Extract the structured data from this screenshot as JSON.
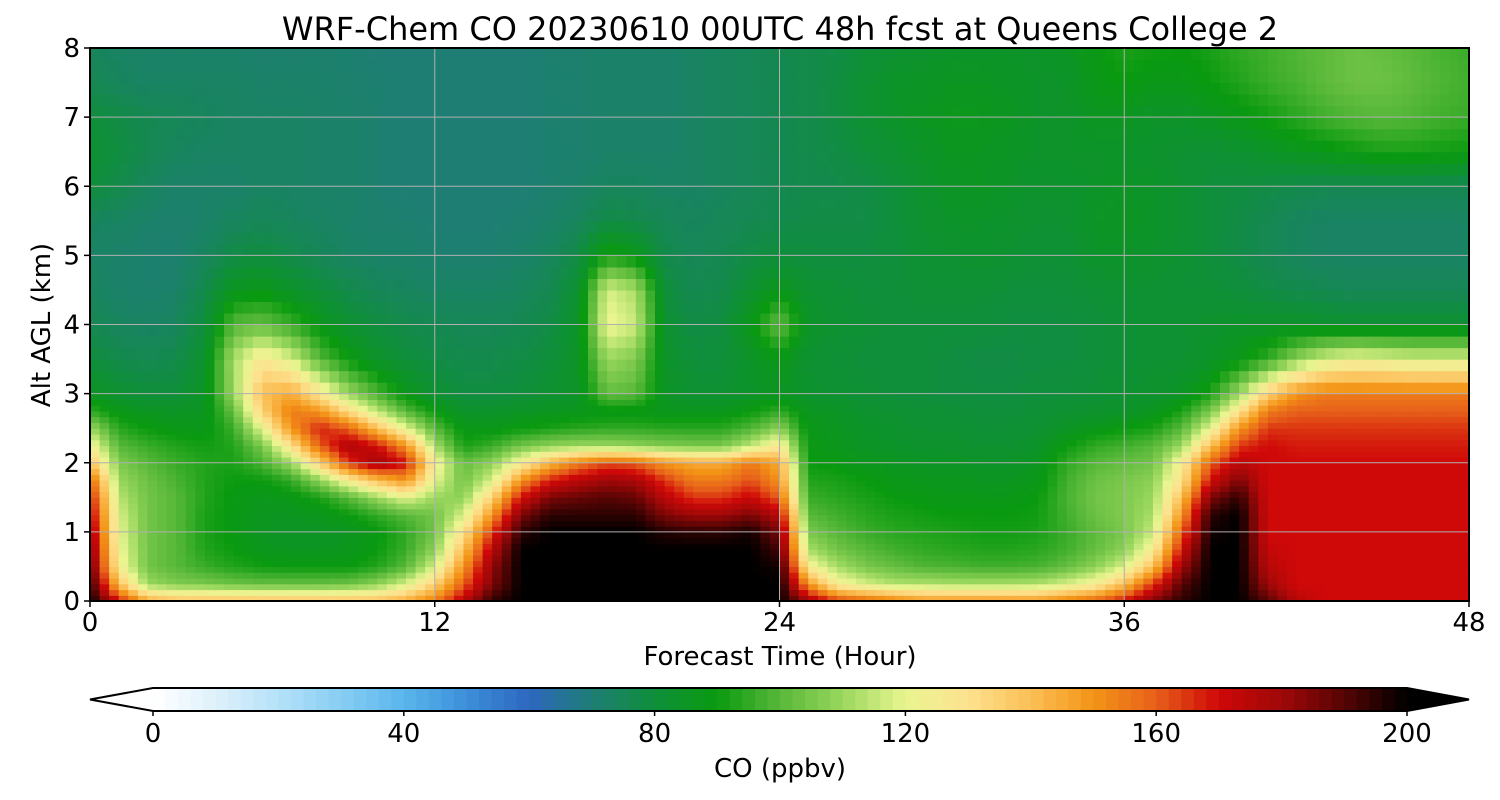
{
  "chart_data": {
    "type": "heatmap",
    "title": "WRF-Chem CO  20230610 00UTC 48h fcst at Queens College 2",
    "xlabel": "Forecast Time (Hour)",
    "ylabel": "Alt AGL (km)",
    "xlim": [
      0,
      48
    ],
    "ylim": [
      0,
      8
    ],
    "xticks": [
      0,
      12,
      24,
      36,
      48
    ],
    "yticks": [
      0,
      1,
      2,
      3,
      4,
      5,
      6,
      7,
      8
    ],
    "grid": true,
    "colorbar": {
      "label": "CO  (ppbv)",
      "range": [
        0,
        200
      ],
      "ticks": [
        0,
        40,
        80,
        120,
        160,
        200
      ],
      "extend": "both",
      "colors": [
        "#ffffff",
        "#dff1fb",
        "#b5e1f8",
        "#87cdf3",
        "#5ab6ec",
        "#3c8fd9",
        "#2e67bf",
        "#1e7e74",
        "#0f8f3a",
        "#0a9a10",
        "#58b839",
        "#9ad75e",
        "#e9f590",
        "#fde28f",
        "#fbbf55",
        "#f39417",
        "#e7601a",
        "#cf0808",
        "#9f0808",
        "#560404",
        "#000000"
      ]
    },
    "x": [
      0,
      1,
      2,
      3,
      4,
      5,
      6,
      7,
      8,
      9,
      10,
      11,
      12,
      13,
      14,
      15,
      16,
      17,
      18,
      19,
      20,
      21,
      22,
      23,
      24,
      25,
      26,
      27,
      28,
      29,
      30,
      31,
      32,
      33,
      34,
      35,
      36,
      37,
      38,
      39,
      40,
      41,
      42,
      43,
      44,
      45,
      46,
      47,
      48
    ],
    "y": [
      0,
      0.25,
      0.5,
      0.75,
      1,
      1.25,
      1.5,
      1.75,
      2,
      2.25,
      2.5,
      2.75,
      3,
      3.5,
      4,
      4.5,
      5,
      5.5,
      6,
      6.5,
      7,
      7.5,
      8
    ],
    "z_rows_by_altitude": [
      [
        200,
        170,
        145,
        140,
        140,
        140,
        140,
        140,
        140,
        140,
        140,
        145,
        155,
        175,
        195,
        200,
        200,
        200,
        200,
        200,
        200,
        200,
        200,
        200,
        200,
        180,
        165,
        160,
        155,
        150,
        150,
        150,
        150,
        150,
        155,
        160,
        170,
        185,
        195,
        200,
        200,
        190,
        175,
        170,
        170,
        170,
        170,
        170,
        170
      ],
      [
        195,
        140,
        110,
        106,
        105,
        103,
        102,
        102,
        102,
        103,
        108,
        118,
        135,
        160,
        185,
        200,
        200,
        200,
        200,
        200,
        200,
        200,
        200,
        200,
        200,
        150,
        125,
        118,
        113,
        113,
        112,
        112,
        112,
        113,
        118,
        125,
        140,
        165,
        190,
        200,
        200,
        180,
        170,
        170,
        170,
        170,
        170,
        170,
        170
      ],
      [
        190,
        125,
        104,
        100,
        96,
        93,
        91,
        90,
        90,
        90,
        93,
        100,
        118,
        150,
        182,
        200,
        200,
        200,
        200,
        200,
        200,
        200,
        200,
        200,
        198,
        125,
        112,
        105,
        102,
        99,
        98,
        97,
        97,
        98,
        102,
        108,
        118,
        140,
        180,
        200,
        200,
        175,
        170,
        170,
        170,
        170,
        170,
        170,
        170
      ],
      [
        185,
        122,
        104,
        100,
        93,
        90,
        87,
        86,
        86,
        87,
        90,
        96,
        108,
        140,
        175,
        200,
        200,
        200,
        200,
        200,
        200,
        200,
        200,
        200,
        192,
        112,
        104,
        100,
        97,
        95,
        94,
        93,
        93,
        94,
        97,
        102,
        108,
        125,
        170,
        200,
        200,
        172,
        170,
        170,
        170,
        170,
        170,
        170,
        170
      ],
      [
        180,
        120,
        104,
        100,
        92,
        89,
        86,
        85,
        85,
        86,
        89,
        95,
        104,
        130,
        165,
        195,
        200,
        200,
        200,
        200,
        196,
        195,
        195,
        198,
        185,
        105,
        100,
        96,
        94,
        93,
        92,
        91,
        91,
        92,
        96,
        101,
        105,
        116,
        160,
        198,
        200,
        170,
        170,
        170,
        170,
        170,
        170,
        170,
        170
      ],
      [
        175,
        118,
        104,
        100,
        92,
        89,
        86,
        86,
        87,
        90,
        95,
        100,
        104,
        118,
        150,
        185,
        195,
        195,
        195,
        195,
        185,
        180,
        180,
        185,
        175,
        100,
        97,
        94,
        92,
        91,
        90,
        90,
        90,
        91,
        97,
        103,
        106,
        112,
        150,
        195,
        200,
        170,
        170,
        170,
        170,
        170,
        170,
        170,
        170
      ],
      [
        170,
        114,
        104,
        100,
        93,
        89,
        87,
        88,
        92,
        100,
        110,
        120,
        110,
        108,
        135,
        170,
        185,
        188,
        190,
        188,
        175,
        165,
        165,
        172,
        160,
        96,
        94,
        92,
        90,
        89,
        88,
        88,
        88,
        90,
        98,
        104,
        106,
        110,
        140,
        185,
        195,
        170,
        170,
        170,
        170,
        170,
        170,
        170,
        170
      ],
      [
        160,
        110,
        103,
        98,
        93,
        90,
        90,
        95,
        108,
        125,
        140,
        150,
        120,
        104,
        118,
        150,
        168,
        175,
        180,
        178,
        165,
        155,
        155,
        162,
        150,
        93,
        92,
        90,
        88,
        87,
        87,
        86,
        86,
        88,
        97,
        103,
        105,
        108,
        130,
        170,
        185,
        170,
        170,
        170,
        170,
        170,
        170,
        170,
        170
      ],
      [
        140,
        106,
        100,
        96,
        93,
        92,
        98,
        110,
        135,
        165,
        180,
        170,
        125,
        102,
        108,
        125,
        142,
        155,
        162,
        160,
        150,
        145,
        145,
        155,
        145,
        90,
        89,
        87,
        86,
        85,
        85,
        84,
        84,
        86,
        95,
        100,
        102,
        104,
        125,
        160,
        175,
        170,
        170,
        170,
        170,
        170,
        170,
        170,
        170
      ],
      [
        125,
        100,
        96,
        93,
        91,
        93,
        105,
        130,
        160,
        178,
        170,
        150,
        112,
        92,
        96,
        104,
        108,
        110,
        110,
        108,
        106,
        105,
        105,
        115,
        128,
        89,
        87,
        85,
        84,
        83,
        83,
        82,
        82,
        84,
        90,
        95,
        97,
        100,
        110,
        140,
        165,
        170,
        168,
        168,
        168,
        168,
        168,
        168,
        168
      ],
      [
        110,
        94,
        90,
        88,
        88,
        96,
        120,
        150,
        168,
        160,
        140,
        120,
        100,
        88,
        88,
        90,
        92,
        94,
        95,
        95,
        94,
        94,
        94,
        99,
        108,
        88,
        86,
        84,
        83,
        82,
        82,
        81,
        81,
        82,
        85,
        88,
        90,
        92,
        100,
        120,
        150,
        165,
        165,
        165,
        165,
        165,
        165,
        165,
        165
      ],
      [
        95,
        88,
        86,
        85,
        86,
        102,
        135,
        155,
        150,
        132,
        115,
        100,
        90,
        84,
        84,
        85,
        86,
        87,
        88,
        88,
        87,
        87,
        87,
        90,
        95,
        86,
        85,
        83,
        82,
        81,
        81,
        80,
        80,
        81,
        82,
        83,
        84,
        86,
        92,
        105,
        130,
        155,
        160,
        160,
        160,
        160,
        160,
        160,
        160
      ],
      [
        86,
        82,
        80,
        80,
        85,
        110,
        140,
        145,
        128,
        110,
        98,
        88,
        82,
        79,
        79,
        80,
        82,
        84,
        102,
        100,
        85,
        82,
        82,
        84,
        86,
        83,
        82,
        81,
        80,
        80,
        79,
        79,
        79,
        80,
        80,
        81,
        82,
        83,
        85,
        92,
        110,
        135,
        150,
        155,
        155,
        155,
        155,
        155,
        155
      ],
      [
        80,
        77,
        76,
        77,
        83,
        112,
        128,
        118,
        100,
        90,
        84,
        80,
        78,
        77,
        77,
        78,
        80,
        85,
        110,
        106,
        84,
        80,
        80,
        84,
        88,
        82,
        81,
        80,
        80,
        80,
        79,
        78,
        78,
        79,
        79,
        80,
        81,
        82,
        82,
        84,
        88,
        95,
        108,
        118,
        122,
        120,
        118,
        118,
        118
      ],
      [
        76,
        74,
        73,
        74,
        80,
        100,
        102,
        96,
        88,
        82,
        79,
        77,
        76,
        75,
        75,
        76,
        78,
        84,
        122,
        116,
        82,
        78,
        79,
        88,
        102,
        84,
        82,
        81,
        80,
        80,
        80,
        80,
        79,
        79,
        79,
        80,
        81,
        82,
        82,
        83,
        84,
        84,
        84,
        83,
        82,
        82,
        82,
        82,
        82
      ],
      [
        74,
        72,
        71,
        72,
        77,
        86,
        88,
        84,
        80,
        77,
        75,
        74,
        73,
        73,
        73,
        74,
        76,
        82,
        118,
        112,
        80,
        76,
        77,
        82,
        88,
        82,
        81,
        80,
        80,
        81,
        81,
        81,
        80,
        80,
        80,
        81,
        82,
        82,
        81,
        81,
        80,
        78,
        77,
        76,
        75,
        75,
        75,
        75,
        75
      ],
      [
        73,
        72,
        71,
        71,
        74,
        78,
        79,
        77,
        75,
        73,
        72,
        72,
        71,
        71,
        71,
        72,
        74,
        78,
        92,
        88,
        77,
        75,
        76,
        78,
        80,
        79,
        79,
        79,
        80,
        82,
        82,
        83,
        82,
        81,
        81,
        84,
        84,
        83,
        82,
        80,
        78,
        76,
        74,
        73,
        73,
        73,
        73,
        73,
        73
      ],
      [
        74,
        73,
        72,
        71,
        72,
        74,
        75,
        74,
        73,
        72,
        71,
        71,
        70,
        70,
        70,
        71,
        72,
        74,
        78,
        77,
        75,
        74,
        75,
        76,
        77,
        78,
        78,
        78,
        80,
        82,
        84,
        84,
        83,
        82,
        82,
        85,
        86,
        84,
        82,
        80,
        78,
        76,
        74,
        73,
        73,
        73,
        73,
        73,
        73
      ],
      [
        80,
        77,
        74,
        72,
        72,
        72,
        73,
        73,
        72,
        72,
        71,
        70,
        70,
        70,
        70,
        70,
        71,
        72,
        74,
        74,
        73,
        73,
        74,
        75,
        76,
        77,
        77,
        78,
        80,
        83,
        85,
        86,
        84,
        83,
        83,
        84,
        85,
        84,
        82,
        80,
        79,
        78,
        77,
        76,
        76,
        76,
        76,
        76,
        76
      ],
      [
        82,
        79,
        76,
        74,
        73,
        73,
        73,
        73,
        72,
        72,
        71,
        70,
        70,
        70,
        70,
        70,
        71,
        71,
        72,
        72,
        72,
        73,
        74,
        75,
        76,
        77,
        78,
        80,
        82,
        84,
        86,
        86,
        85,
        84,
        84,
        84,
        84,
        83,
        82,
        81,
        82,
        84,
        86,
        88,
        90,
        92,
        92,
        91,
        90
      ],
      [
        80,
        78,
        76,
        75,
        74,
        73,
        73,
        73,
        72,
        72,
        71,
        70,
        70,
        70,
        70,
        70,
        71,
        71,
        72,
        72,
        72,
        73,
        74,
        75,
        76,
        77,
        79,
        82,
        84,
        86,
        87,
        87,
        86,
        84,
        84,
        86,
        86,
        84,
        84,
        86,
        88,
        91,
        94,
        97,
        99,
        100,
        99,
        97,
        96
      ],
      [
        76,
        74,
        73,
        73,
        73,
        73,
        72,
        72,
        72,
        71,
        71,
        70,
        70,
        70,
        70,
        70,
        71,
        71,
        72,
        72,
        72,
        73,
        74,
        75,
        76,
        77,
        79,
        82,
        84,
        85,
        86,
        86,
        85,
        84,
        84,
        88,
        90,
        88,
        88,
        90,
        93,
        96,
        98,
        101,
        103,
        103,
        101,
        99,
        97
      ],
      [
        74,
        73,
        72,
        72,
        72,
        72,
        71,
        71,
        71,
        71,
        70,
        70,
        70,
        70,
        70,
        70,
        71,
        71,
        72,
        72,
        72,
        73,
        74,
        75,
        76,
        77,
        78,
        80,
        82,
        83,
        84,
        84,
        84,
        84,
        85,
        89,
        92,
        91,
        90,
        92,
        95,
        97,
        99,
        101,
        103,
        102,
        100,
        98,
        96
      ]
    ]
  }
}
